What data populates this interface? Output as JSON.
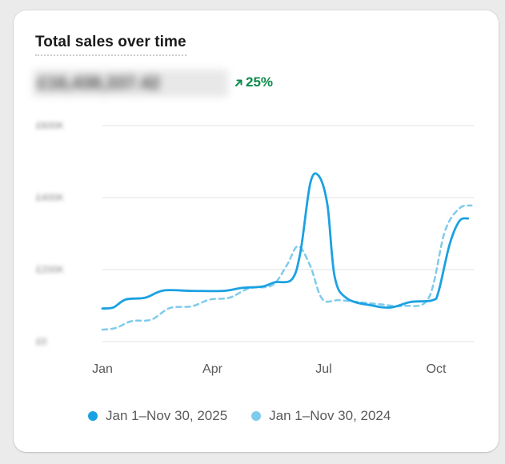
{
  "card": {
    "title": "Total sales over time",
    "total_value": "£16,438,337.42",
    "change": "25%",
    "change_direction": "up",
    "change_color": "#0b8a4a"
  },
  "chart_data": {
    "type": "line",
    "title": "Total sales over time",
    "xlabel": "",
    "ylabel": "",
    "x_tick_labels": [
      "Jan",
      "Apr",
      "Jul",
      "Oct"
    ],
    "y_tick_labels": [
      "£0",
      "£200K",
      "£400K",
      "£600K"
    ],
    "ylim": [
      0,
      600000
    ],
    "grid": true,
    "legend_position": "bottom",
    "series": [
      {
        "name": "Jan 1–Nov 30, 2025",
        "color": "#1ba1e2",
        "style": "solid",
        "points": [
          [
            "2025-01-01",
            92000
          ],
          [
            "2025-01-10",
            95000
          ],
          [
            "2025-01-20",
            117000
          ],
          [
            "2025-02-05",
            122000
          ],
          [
            "2025-02-20",
            142000
          ],
          [
            "2025-03-15",
            141000
          ],
          [
            "2025-04-10",
            141000
          ],
          [
            "2025-04-25",
            149000
          ],
          [
            "2025-05-12",
            153000
          ],
          [
            "2025-05-22",
            165000
          ],
          [
            "2025-06-05",
            173000
          ],
          [
            "2025-06-12",
            250000
          ],
          [
            "2025-06-20",
            440000
          ],
          [
            "2025-06-27",
            460000
          ],
          [
            "2025-07-04",
            380000
          ],
          [
            "2025-07-10",
            180000
          ],
          [
            "2025-07-20",
            120000
          ],
          [
            "2025-08-10",
            100000
          ],
          [
            "2025-08-25",
            95000
          ],
          [
            "2025-09-10",
            110000
          ],
          [
            "2025-09-28",
            115000
          ],
          [
            "2025-10-03",
            140000
          ],
          [
            "2025-10-12",
            270000
          ],
          [
            "2025-10-20",
            335000
          ],
          [
            "2025-10-27",
            342000
          ]
        ]
      },
      {
        "name": "Jan 1–Nov 30, 2024",
        "color": "#7fcbeb",
        "style": "dashed",
        "points": [
          [
            "2025-01-01",
            33000
          ],
          [
            "2025-01-12",
            38000
          ],
          [
            "2025-01-25",
            57000
          ],
          [
            "2025-02-10",
            61000
          ],
          [
            "2025-02-25",
            93000
          ],
          [
            "2025-03-15",
            98000
          ],
          [
            "2025-03-30",
            117000
          ],
          [
            "2025-04-15",
            122000
          ],
          [
            "2025-05-01",
            148000
          ],
          [
            "2025-05-20",
            157000
          ],
          [
            "2025-06-01",
            213000
          ],
          [
            "2025-06-10",
            265000
          ],
          [
            "2025-06-20",
            210000
          ],
          [
            "2025-06-30",
            118000
          ],
          [
            "2025-07-15",
            115000
          ],
          [
            "2025-08-15",
            104000
          ],
          [
            "2025-09-05",
            99000
          ],
          [
            "2025-09-25",
            122000
          ],
          [
            "2025-10-08",
            305000
          ],
          [
            "2025-10-20",
            370000
          ],
          [
            "2025-10-30",
            378000
          ]
        ]
      }
    ]
  }
}
